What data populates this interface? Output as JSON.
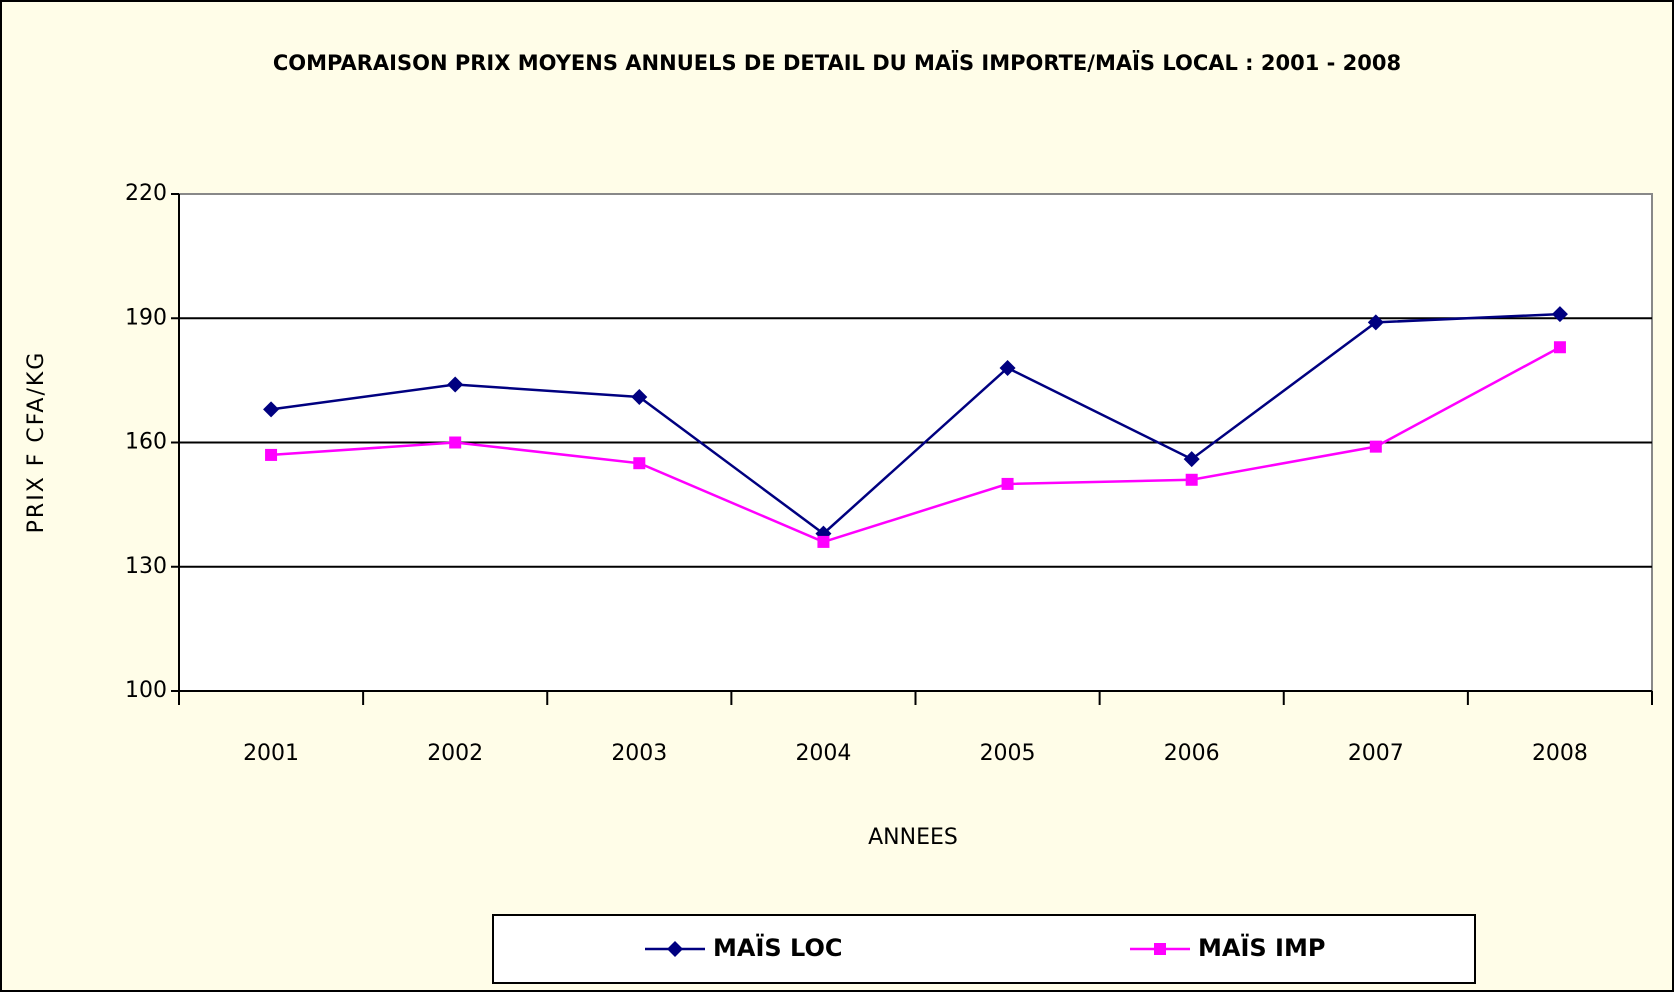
{
  "chart_data": {
    "type": "line",
    "title": "COMPARAISON PRIX MOYENS ANNUELS DE DETAIL DU MAÏS IMPORTE/MAÏS LOCAL : 2001 - 2008",
    "x_label": "ANNEES",
    "y_label": "PRIX F CFA/KG",
    "categories": [
      "2001",
      "2002",
      "2003",
      "2004",
      "2005",
      "2006",
      "2007",
      "2008"
    ],
    "series": [
      {
        "name": "MAÏS LOC",
        "color": "#000080",
        "marker": "diamond",
        "values": [
          168,
          174,
          171,
          138,
          178,
          156,
          189,
          191
        ]
      },
      {
        "name": "MAÏS IMP",
        "color": "#ff00ff",
        "marker": "square",
        "values": [
          157,
          160,
          155,
          136,
          150,
          151,
          159,
          183
        ]
      }
    ],
    "ylim": [
      100,
      220
    ],
    "yticks": [
      100,
      130,
      160,
      190,
      220
    ],
    "grid": true,
    "legend": "bottom"
  }
}
